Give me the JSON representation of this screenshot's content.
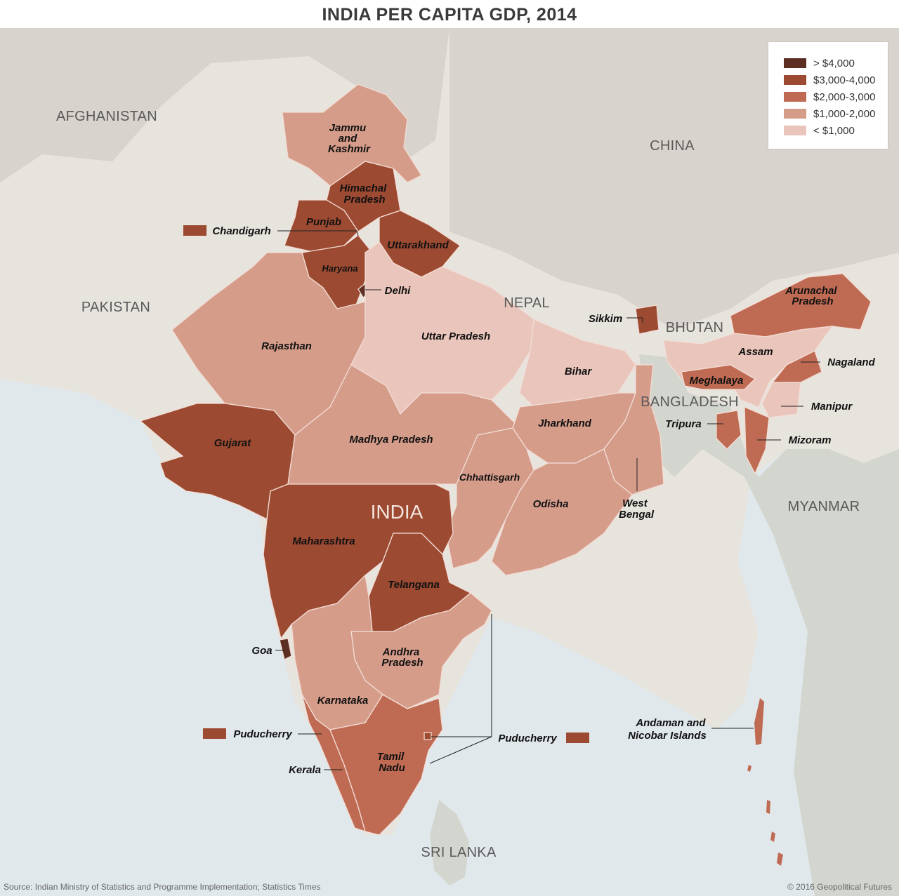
{
  "title": "INDIA PER CAPITA GDP, 2014",
  "legend": [
    {
      "label": "> $4,000",
      "color": "#5c2f22"
    },
    {
      "label": "$3,000-4,000",
      "color": "#9c4a31"
    },
    {
      "label": "$2,000-3,000",
      "color": "#bf6b53"
    },
    {
      "label": "$1,000-2,000",
      "color": "#d59c8a"
    },
    {
      "label": "< $1,000",
      "color": "#e9c5bb"
    }
  ],
  "countries": {
    "afghanistan": "AFGHANISTAN",
    "pakistan": "PAKISTAN",
    "china": "CHINA",
    "nepal": "NEPAL",
    "bhutan": "BHUTAN",
    "bangladesh": "BANGLADESH",
    "myanmar": "MYANMAR",
    "sri_lanka": "SRI LANKA",
    "india": "INDIA"
  },
  "states": {
    "jammu_and_kashmir": {
      "l1": "Jammu",
      "l2": "and",
      "l3": "Kashmir",
      "bracket": "$1,000-2,000"
    },
    "himachal_pradesh": {
      "l1": "Himachal",
      "l2": "Pradesh",
      "bracket": "$3,000-4,000"
    },
    "punjab": {
      "label": "Punjab",
      "bracket": "$3,000-4,000"
    },
    "chandigarh": {
      "label": "Chandigarh",
      "bracket": "$3,000-4,000"
    },
    "uttarakhand": {
      "label": "Uttarakhand",
      "bracket": "$3,000-4,000"
    },
    "haryana": {
      "label": "Haryana",
      "bracket": "$3,000-4,000"
    },
    "delhi": {
      "label": "Delhi",
      "bracket": "> $4,000"
    },
    "rajasthan": {
      "label": "Rajasthan",
      "bracket": "$1,000-2,000"
    },
    "uttar_pradesh": {
      "label": "Uttar Pradesh",
      "bracket": "< $1,000"
    },
    "bihar": {
      "label": "Bihar",
      "bracket": "< $1,000"
    },
    "sikkim": {
      "label": "Sikkim",
      "bracket": "$3,000-4,000"
    },
    "arunachal_pradesh": {
      "l1": "Arunachal",
      "l2": "Pradesh",
      "bracket": "$2,000-3,000"
    },
    "assam": {
      "label": "Assam",
      "bracket": "< $1,000"
    },
    "nagaland": {
      "label": "Nagaland",
      "bracket": "$2,000-3,000"
    },
    "meghalaya": {
      "label": "Meghalaya",
      "bracket": "$2,000-3,000"
    },
    "manipur": {
      "label": "Manipur",
      "bracket": "< $1,000"
    },
    "tripura": {
      "label": "Tripura",
      "bracket": "$2,000-3,000"
    },
    "mizoram": {
      "label": "Mizoram",
      "bracket": "$2,000-3,000"
    },
    "gujarat": {
      "label": "Gujarat",
      "bracket": "$3,000-4,000"
    },
    "madhya_pradesh": {
      "label": "Madhya Pradesh",
      "bracket": "$1,000-2,000"
    },
    "jharkhand": {
      "label": "Jharkhand",
      "bracket": "$1,000-2,000"
    },
    "west_bengal": {
      "l1": "West",
      "l2": "Bengal",
      "bracket": "$1,000-2,000"
    },
    "chhattisgarh": {
      "label": "Chhattisgarh",
      "bracket": "$1,000-2,000"
    },
    "odisha": {
      "label": "Odisha",
      "bracket": "$1,000-2,000"
    },
    "maharashtra": {
      "label": "Maharashtra",
      "bracket": "$3,000-4,000"
    },
    "telangana": {
      "label": "Telangana",
      "bracket": "$3,000-4,000"
    },
    "goa": {
      "label": "Goa",
      "bracket": "> $4,000"
    },
    "andhra_pradesh": {
      "l1": "Andhra",
      "l2": "Pradesh",
      "bracket": "$1,000-2,000"
    },
    "karnataka": {
      "label": "Karnataka",
      "bracket": "$1,000-2,000"
    },
    "kerala": {
      "label": "Kerala",
      "bracket": "$2,000-3,000"
    },
    "tamil_nadu": {
      "l1": "Tamil",
      "l2": "Nadu",
      "bracket": "$2,000-3,000"
    },
    "puducherry": {
      "label": "Puducherry",
      "bracket": "$3,000-4,000"
    },
    "andaman_nicobar": {
      "l1": "Andaman and",
      "l2": "Nicobar Islands",
      "bracket": "$2,000-3,000"
    }
  },
  "colors": {
    "sea": "#e1e8ec",
    "land": "#e7e3dd",
    "mountain": "#d2ccc4",
    "neighbor_east": "#d3d6ce"
  },
  "source": "Source: Indian Ministry of Statistics and Programme Implementation; Statistics Times",
  "copyright": "© 2016 Geopolitical Futures"
}
